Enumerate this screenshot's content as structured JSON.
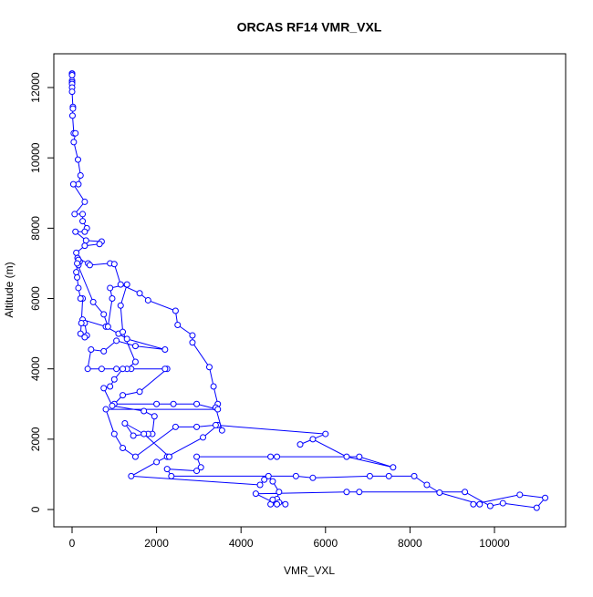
{
  "chart_data": {
    "type": "line",
    "title": "ORCAS RF14 VMR_VXL",
    "x_label": "VMR_VXL",
    "y_label": "Altitude (m)",
    "color": "#0000ff",
    "markers": true,
    "xlim": [
      -432,
      11685
    ],
    "ylim": [
      -492,
      12960
    ],
    "xticks": [
      0,
      2000,
      4000,
      6000,
      8000,
      10000
    ],
    "yticks": [
      0,
      2000,
      4000,
      6000,
      8000,
      10000,
      12000
    ],
    "x": [
      0,
      0,
      0,
      0,
      0,
      0,
      0,
      0,
      20,
      20,
      10,
      40,
      80,
      40,
      140,
      200,
      150,
      30,
      300,
      60,
      250,
      250,
      350,
      300,
      80,
      330,
      700,
      650,
      300,
      100,
      180,
      150,
      130,
      380,
      420,
      900,
      1000,
      1150,
      1600,
      1800,
      2450,
      2500,
      2850,
      2850,
      3250,
      3350,
      3450,
      3400,
      3550,
      3450,
      3100,
      2250,
      2000,
      1400,
      4450,
      4550,
      4650,
      4750,
      4900,
      4850,
      5050,
      4900,
      4700,
      4750,
      4850,
      4350,
      6500,
      6800,
      9300,
      9900,
      10200,
      11000,
      11200,
      10600,
      9500,
      9650,
      8700,
      8400,
      8100,
      7500,
      7050,
      5700,
      5300,
      2350,
      2250,
      2950,
      3050,
      2950,
      4700,
      4850,
      6800,
      7600,
      6500,
      5700,
      5400,
      6000,
      3400,
      2950,
      2450,
      1500,
      1200,
      1000,
      800,
      3450,
      2950,
      2400,
      2000,
      1000,
      1200,
      1600,
      2250,
      2200,
      1400,
      1050,
      700,
      370,
      450,
      750,
      1050,
      1500,
      2200,
      1300,
      1100,
      800,
      250,
      300,
      350,
      300,
      200,
      220,
      250,
      200,
      150,
      120,
      100,
      150,
      120,
      500,
      750,
      850,
      950,
      900,
      1300,
      1150,
      1200,
      1500,
      1300,
      1200,
      1000,
      900,
      750,
      950,
      1700,
      1950,
      1900,
      1800,
      1450,
      1250,
      1700,
      2300
    ],
    "values": [
      12400,
      12390,
      12350,
      12200,
      12150,
      12100,
      12000,
      11880,
      11450,
      11400,
      11200,
      10700,
      10700,
      10450,
      9950,
      9500,
      9250,
      9250,
      8750,
      8400,
      8400,
      8200,
      8000,
      7900,
      7900,
      7650,
      7620,
      7550,
      7500,
      7300,
      7050,
      6950,
      7150,
      7000,
      6950,
      7000,
      6980,
      6400,
      6150,
      5950,
      5650,
      5250,
      4950,
      4750,
      4050,
      3500,
      3000,
      2900,
      2250,
      2400,
      2050,
      1500,
      1350,
      950,
      700,
      850,
      950,
      800,
      500,
      300,
      150,
      200,
      150,
      280,
      150,
      450,
      500,
      500,
      500,
      100,
      180,
      50,
      330,
      420,
      150,
      150,
      480,
      700,
      950,
      950,
      950,
      900,
      950,
      950,
      1150,
      1100,
      1200,
      1500,
      1500,
      1500,
      1500,
      1200,
      1500,
      2000,
      1850,
      2150,
      2400,
      2350,
      2350,
      1500,
      1750,
      2150,
      2850,
      2850,
      3000,
      3000,
      3000,
      3000,
      3250,
      3350,
      4000,
      4000,
      4000,
      4000,
      4000,
      4000,
      4550,
      4500,
      4800,
      4650,
      4550,
      4850,
      5000,
      5200,
      5400,
      5300,
      4950,
      4900,
      5000,
      5300,
      6000,
      6000,
      6300,
      6600,
      6750,
      7100,
      7000,
      5900,
      5550,
      5200,
      6000,
      6300,
      6400,
      5800,
      5050,
      4200,
      4000,
      4000,
      3700,
      3500,
      3450,
      2950,
      2800,
      2650,
      2150,
      2150,
      2100,
      2450,
      2150,
      1500
    ]
  }
}
